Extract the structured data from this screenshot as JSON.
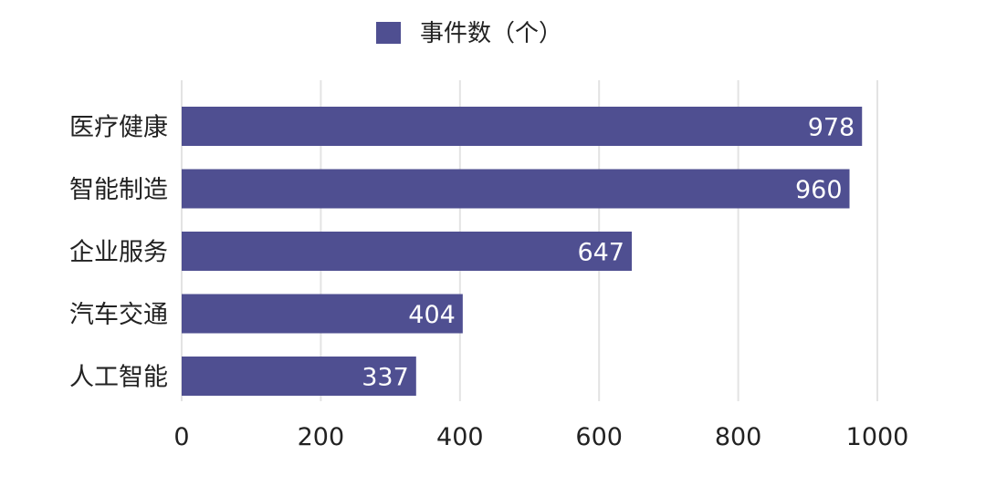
{
  "chart_data": {
    "type": "bar",
    "orientation": "horizontal",
    "categories": [
      "医疗健康",
      "智能制造",
      "企业服务",
      "汽车交通",
      "人工智能"
    ],
    "series": [
      {
        "name": "事件数（个）",
        "values": [
          978,
          960,
          647,
          404,
          337
        ],
        "color": "#4f4f91"
      }
    ],
    "xlim": [
      0,
      1000
    ],
    "x_ticks": [
      "0",
      "200",
      "400",
      "600",
      "800",
      "1000"
    ],
    "grid": "vertical",
    "legend_position": "top-center",
    "data_labels": "inside-end",
    "label_color": "#ffffff",
    "axis_text_color": "#222222",
    "grid_color": "#e3e3e3"
  }
}
